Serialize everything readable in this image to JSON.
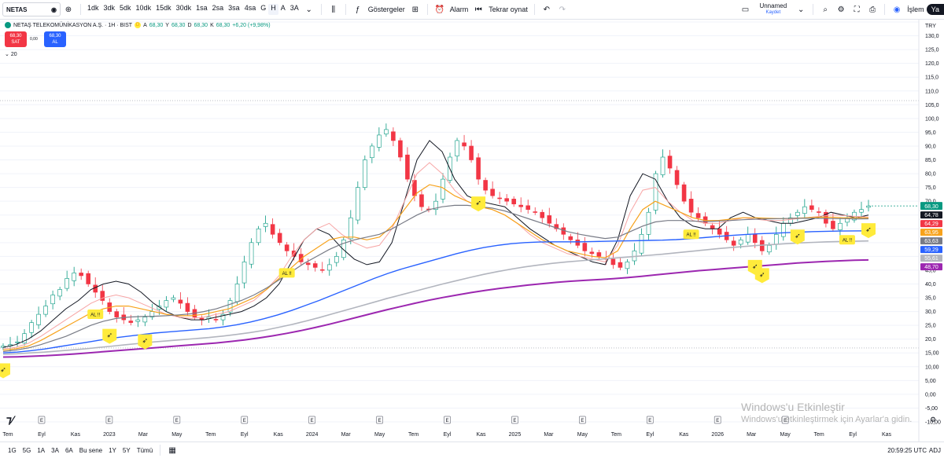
{
  "toolbar": {
    "symbol": "NETAS",
    "intervals": [
      "1dk",
      "3dk",
      "5dk",
      "10dk",
      "15dk",
      "30dk",
      "1sa",
      "2sa",
      "3sa",
      "4sa",
      "G",
      "H",
      "A",
      "3A"
    ],
    "selected_interval": "H",
    "indicators_label": "Göstergeler",
    "alarm_label": "Alarm",
    "replay_label": "Tekrar oynat",
    "layout_name": "Unnamed",
    "layout_status": "Kaydet",
    "trade_label": "İşlem",
    "publish_label": "Ya"
  },
  "legend": {
    "title": "NETAŞ TELEKOMÜNİKASYON A.Ş. · 1H · BIST",
    "flag": "D",
    "o_label": "A",
    "o_value": "68,30",
    "h_label": "Y",
    "h_value": "68,30",
    "l_label": "D",
    "l_value": "68,30",
    "c_label": "K",
    "c_value": "68,30",
    "change": "+6,20 (+9,98%)",
    "sell_price": "68,30",
    "sell_label": "SAT",
    "spread": "0,00",
    "buy_price": "68,30",
    "buy_label": "AL",
    "indicator_count": "20"
  },
  "bottom": {
    "ranges": [
      "1G",
      "5G",
      "1A",
      "3A",
      "6A",
      "Bu sene",
      "1Y",
      "5Y",
      "Tümü"
    ],
    "clock": "20:59:25 UTC",
    "adj": "ADJ",
    "watermark_1": "Windows'u Etkinleştir",
    "watermark_2": "Windows'u etkinleştirmek için Ayarlar'a gidin."
  },
  "colors": {
    "up": "#089981",
    "down": "#f23645",
    "ma_black": "#131722",
    "ma_pink": "#f7a5a5",
    "ma_orange": "#f7a21b",
    "ma_gray": "#787b86",
    "ma_blue": "#2962ff",
    "ma_silver": "#b2b5be",
    "ma_purple": "#9c27b0"
  },
  "chart_data": {
    "type": "candlestick",
    "currency": "TRY",
    "ylim": [
      -10,
      135
    ],
    "y_ticks": [
      135,
      130,
      125,
      120,
      115,
      110,
      105,
      100,
      95,
      90,
      85,
      80,
      75,
      70,
      65,
      60,
      55,
      50,
      45,
      40,
      35,
      30,
      25,
      20,
      15,
      10,
      5,
      0,
      -5,
      -10
    ],
    "y_tick_labels": [
      "",
      "130,0",
      "125,0",
      "120,0",
      "115,0",
      "110,0",
      "105,0",
      "100,0",
      "95,0",
      "90,0",
      "85,0",
      "80,0",
      "75,0",
      "70,0",
      "",
      "",
      "",
      "",
      "45,0",
      "40,0",
      "35,0",
      "30,0",
      "25,0",
      "20,0",
      "15,00",
      "10,00",
      "5,00",
      "0,00",
      "-5,00",
      "-10,00"
    ],
    "x_tick_labels": [
      "Tem",
      "Eyl",
      "Kas",
      "2023",
      "Mar",
      "May",
      "Tem",
      "Eyl",
      "Kas",
      "2024",
      "Mar",
      "May",
      "Tem",
      "Eyl",
      "Kas",
      "2025",
      "Mar",
      "May",
      "Tem",
      "Eyl",
      "Kas",
      "2026",
      "Mar",
      "May",
      "Tem",
      "Eyl",
      "Kas"
    ],
    "price_close": [
      17.5,
      18,
      19,
      22,
      26,
      29,
      32,
      36,
      38,
      42,
      44,
      43,
      40,
      37,
      34,
      30,
      28,
      27,
      26,
      27,
      28,
      30,
      32,
      34,
      35,
      33,
      30,
      28,
      27,
      28,
      27,
      29,
      34,
      40,
      48,
      55,
      60,
      62,
      58,
      55,
      52,
      50,
      48,
      47,
      46,
      45,
      47,
      50,
      56,
      64,
      75,
      85,
      90,
      94,
      96,
      92,
      86,
      78,
      72,
      68,
      67,
      70,
      78,
      86,
      92,
      90,
      85,
      78,
      74,
      72,
      71,
      70,
      69,
      68,
      67,
      66,
      64,
      62,
      60,
      58,
      56,
      54,
      52,
      51,
      50,
      49,
      47,
      46,
      48,
      52,
      58,
      66,
      80,
      86,
      82,
      76,
      70,
      66,
      64,
      62,
      60,
      58,
      56,
      54,
      56,
      58,
      55,
      52,
      54,
      58,
      62,
      64,
      66,
      68,
      67,
      66,
      62,
      60,
      62,
      64,
      66,
      67,
      68.3
    ],
    "moving_averages": [
      {
        "values": [
          17,
          18,
          20,
          23,
          27,
          31,
          34,
          38,
          40,
          41,
          40,
          37,
          33,
          30,
          28,
          27,
          27,
          28,
          29,
          30,
          32,
          35,
          40,
          48,
          56,
          60,
          58,
          53,
          49,
          47,
          48,
          55,
          70,
          85,
          92,
          88,
          78,
          72,
          70,
          69,
          68,
          64,
          60,
          57,
          54,
          52,
          50,
          48,
          47,
          56,
          72,
          80,
          78,
          70,
          64,
          61,
          60,
          60,
          64,
          66,
          64,
          63,
          62,
          62,
          63,
          64,
          66,
          65,
          64,
          65
        ]
      },
      {
        "values": [
          16.5,
          17,
          18.5,
          21,
          24,
          27,
          30,
          33,
          35,
          36,
          35,
          33,
          31,
          29,
          28,
          27.5,
          28,
          29,
          30,
          32,
          34,
          38,
          43,
          50,
          56,
          60,
          62,
          58,
          55,
          53,
          54,
          60,
          70,
          80,
          84,
          80,
          74,
          70,
          68,
          67,
          65,
          62,
          58,
          55,
          53,
          51,
          50,
          49,
          48,
          54,
          66,
          74,
          75,
          70,
          66,
          63,
          62,
          62,
          63,
          64,
          63.5,
          63,
          63,
          63.5,
          64,
          64.5,
          65,
          64.8,
          64.5,
          64.3
        ]
      },
      {
        "values": [
          16,
          16.5,
          17.5,
          19.5,
          22,
          24.5,
          27,
          29.5,
          31,
          32,
          32,
          31,
          30,
          29,
          28.5,
          28.5,
          29,
          30,
          31,
          33,
          35,
          38,
          42,
          46,
          50,
          53,
          56,
          57,
          57,
          56,
          57,
          61,
          67,
          73,
          76,
          75,
          72,
          70,
          68,
          67,
          65,
          62,
          59,
          56,
          54,
          52,
          51,
          50,
          49.5,
          52,
          60,
          67,
          70,
          68,
          66,
          64,
          63,
          63,
          63.5,
          64,
          64,
          63.8,
          63.7,
          63.8,
          64,
          64.2,
          64.2,
          64,
          64,
          63.95
        ]
      },
      {
        "values": [
          15.5,
          16,
          16.8,
          18,
          19.5,
          21,
          23,
          25,
          26.5,
          27.5,
          28,
          28.2,
          28.3,
          28.5,
          28.8,
          29.2,
          30,
          31,
          32.5,
          34,
          36,
          38.5,
          41.5,
          44.5,
          47.5,
          50,
          52.5,
          54.5,
          56,
          57,
          58,
          60,
          62.5,
          65,
          67,
          68,
          68.5,
          68.5,
          68,
          67.5,
          66.5,
          65,
          63.5,
          62,
          60.5,
          59,
          58,
          57.2,
          56.5,
          57,
          59,
          61,
          62.5,
          63,
          63,
          62.8,
          62.6,
          62.8,
          63,
          63.3,
          63.5,
          63.6,
          63.7,
          63.8,
          63.8,
          63.8,
          63.7,
          63.7,
          63.6,
          63.63
        ]
      },
      {
        "values": [
          15,
          15.3,
          15.8,
          16.4,
          17.2,
          18,
          18.8,
          19.6,
          20.4,
          21,
          21.6,
          22.2,
          22.6,
          23,
          23.4,
          23.8,
          24.4,
          25.2,
          26.2,
          27.4,
          28.8,
          30.4,
          32.2,
          34,
          36,
          38,
          40,
          42,
          43.8,
          45.4,
          46.8,
          48.2,
          49.6,
          51,
          52.2,
          53.2,
          54,
          54.6,
          55,
          55.2,
          55.3,
          55.3,
          55.3,
          55.4,
          55.5,
          55.6,
          55.7,
          55.8,
          55.9,
          56.1,
          56.4,
          56.8,
          57.2,
          57.6,
          57.9,
          58.2,
          58.4,
          58.6,
          58.8,
          59,
          59.1,
          59.2,
          59.25,
          59.29
        ]
      },
      {
        "values": [
          14.5,
          14.7,
          15,
          15.3,
          15.7,
          16.1,
          16.5,
          17,
          17.5,
          18,
          18.5,
          19,
          19.4,
          19.8,
          20.2,
          20.6,
          21.1,
          21.7,
          22.4,
          23.2,
          24.2,
          25.3,
          26.5,
          27.8,
          29.2,
          30.6,
          32,
          33.4,
          34.8,
          36.1,
          37.4,
          38.7,
          40,
          41.2,
          42.4,
          43.5,
          44.5,
          45.4,
          46.2,
          46.9,
          47.5,
          48,
          48.4,
          48.8,
          49.2,
          49.6,
          50,
          50.4,
          50.8,
          51.3,
          51.8,
          52.3,
          52.8,
          53.2,
          53.6,
          54,
          54.3,
          54.6,
          54.9,
          55.1,
          55.3,
          55.4,
          55.5,
          55.61
        ]
      },
      {
        "values": [
          13.5,
          13.6,
          13.8,
          14,
          14.3,
          14.6,
          15,
          15.4,
          15.8,
          16.2,
          16.6,
          17,
          17.4,
          17.8,
          18.2,
          18.6,
          19.1,
          19.7,
          20.4,
          21.2,
          22.1,
          23.1,
          24.2,
          25.4,
          26.7,
          28,
          29.3,
          30.6,
          31.8,
          33,
          34.1,
          35.1,
          36,
          36.9,
          37.7,
          38.4,
          39,
          39.6,
          40.1,
          40.6,
          41,
          41.3,
          41.6,
          41.9,
          42.3,
          42.8,
          43.3,
          43.8,
          44.3,
          44.8,
          45.2,
          45.6,
          46,
          46.4,
          46.8,
          47.2,
          47.6,
          47.9,
          48.2,
          48.4,
          48.6,
          48.7
        ]
      }
    ],
    "ma_last_values": [
      "64,78",
      "64,29",
      "63,95",
      "63,63",
      "59,29",
      "55,61",
      "48,70"
    ],
    "last_price_label": "68,30",
    "signals": [
      {
        "text": "",
        "idx": 0
      },
      {
        "text": "AL !!",
        "idx": 13
      },
      {
        "text": "",
        "idx": 15
      },
      {
        "text": "",
        "idx": 20
      },
      {
        "text": "AL !!",
        "idx": 40
      },
      {
        "text": "",
        "idx": 67
      },
      {
        "text": "AL !!",
        "idx": 97
      },
      {
        "text": "",
        "idx": 106
      },
      {
        "text": "",
        "idx": 107
      },
      {
        "text": "",
        "idx": 112
      },
      {
        "text": "AL !!",
        "idx": 119
      },
      {
        "text": "",
        "idx": 122
      }
    ],
    "earnings_marker": "E"
  }
}
